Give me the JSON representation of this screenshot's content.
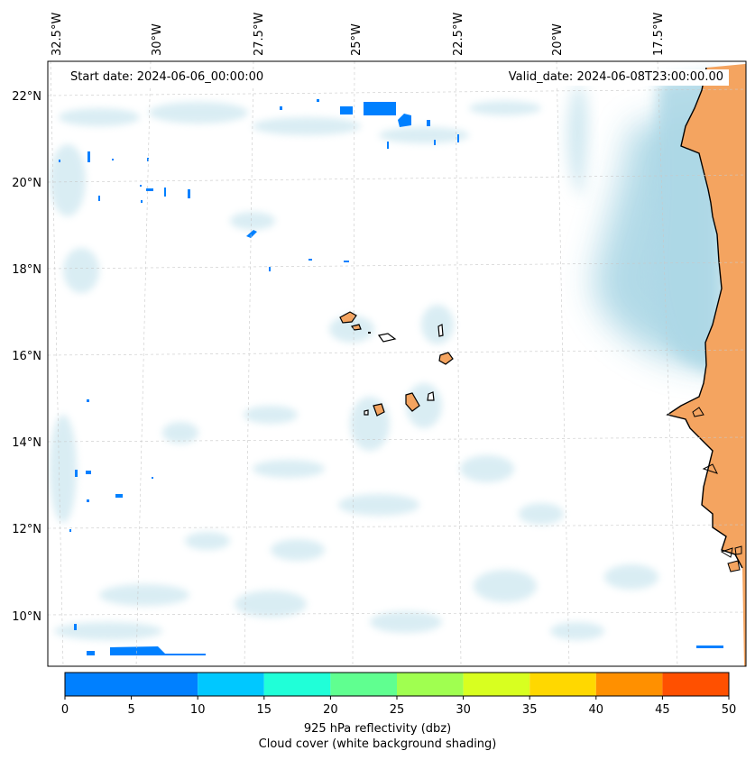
{
  "header": {
    "start_date": "Start date: 2024-06-06_00:00:00",
    "valid_date": "Valid_date: 2024-06-08T23:00:00.00"
  },
  "map": {
    "lon_labels": [
      "32.5°W",
      "30°W",
      "27.5°W",
      "25°W",
      "22.5°W",
      "20°W",
      "17.5°W"
    ],
    "lat_labels": [
      "22°N",
      "20°N",
      "18°N",
      "16°N",
      "14°N",
      "12°N",
      "10°N"
    ],
    "land_color": "#f4a460",
    "cloud_color": "#add8e6",
    "reflectivity_patch_color": "#0080ff",
    "coastline_color": "#000000"
  },
  "colorbar": {
    "ticks": [
      "0",
      "5",
      "10",
      "15",
      "20",
      "25",
      "30",
      "35",
      "40",
      "45",
      "50"
    ],
    "colors": [
      "#0080ff",
      "#00c8ff",
      "#20ffd8",
      "#60ff90",
      "#a0ff50",
      "#d8ff20",
      "#ffd800",
      "#ff9000",
      "#ff5000"
    ],
    "title": "925 hPa reflectivity (dbz)",
    "subtitle": "Cloud cover (white background shading)"
  }
}
